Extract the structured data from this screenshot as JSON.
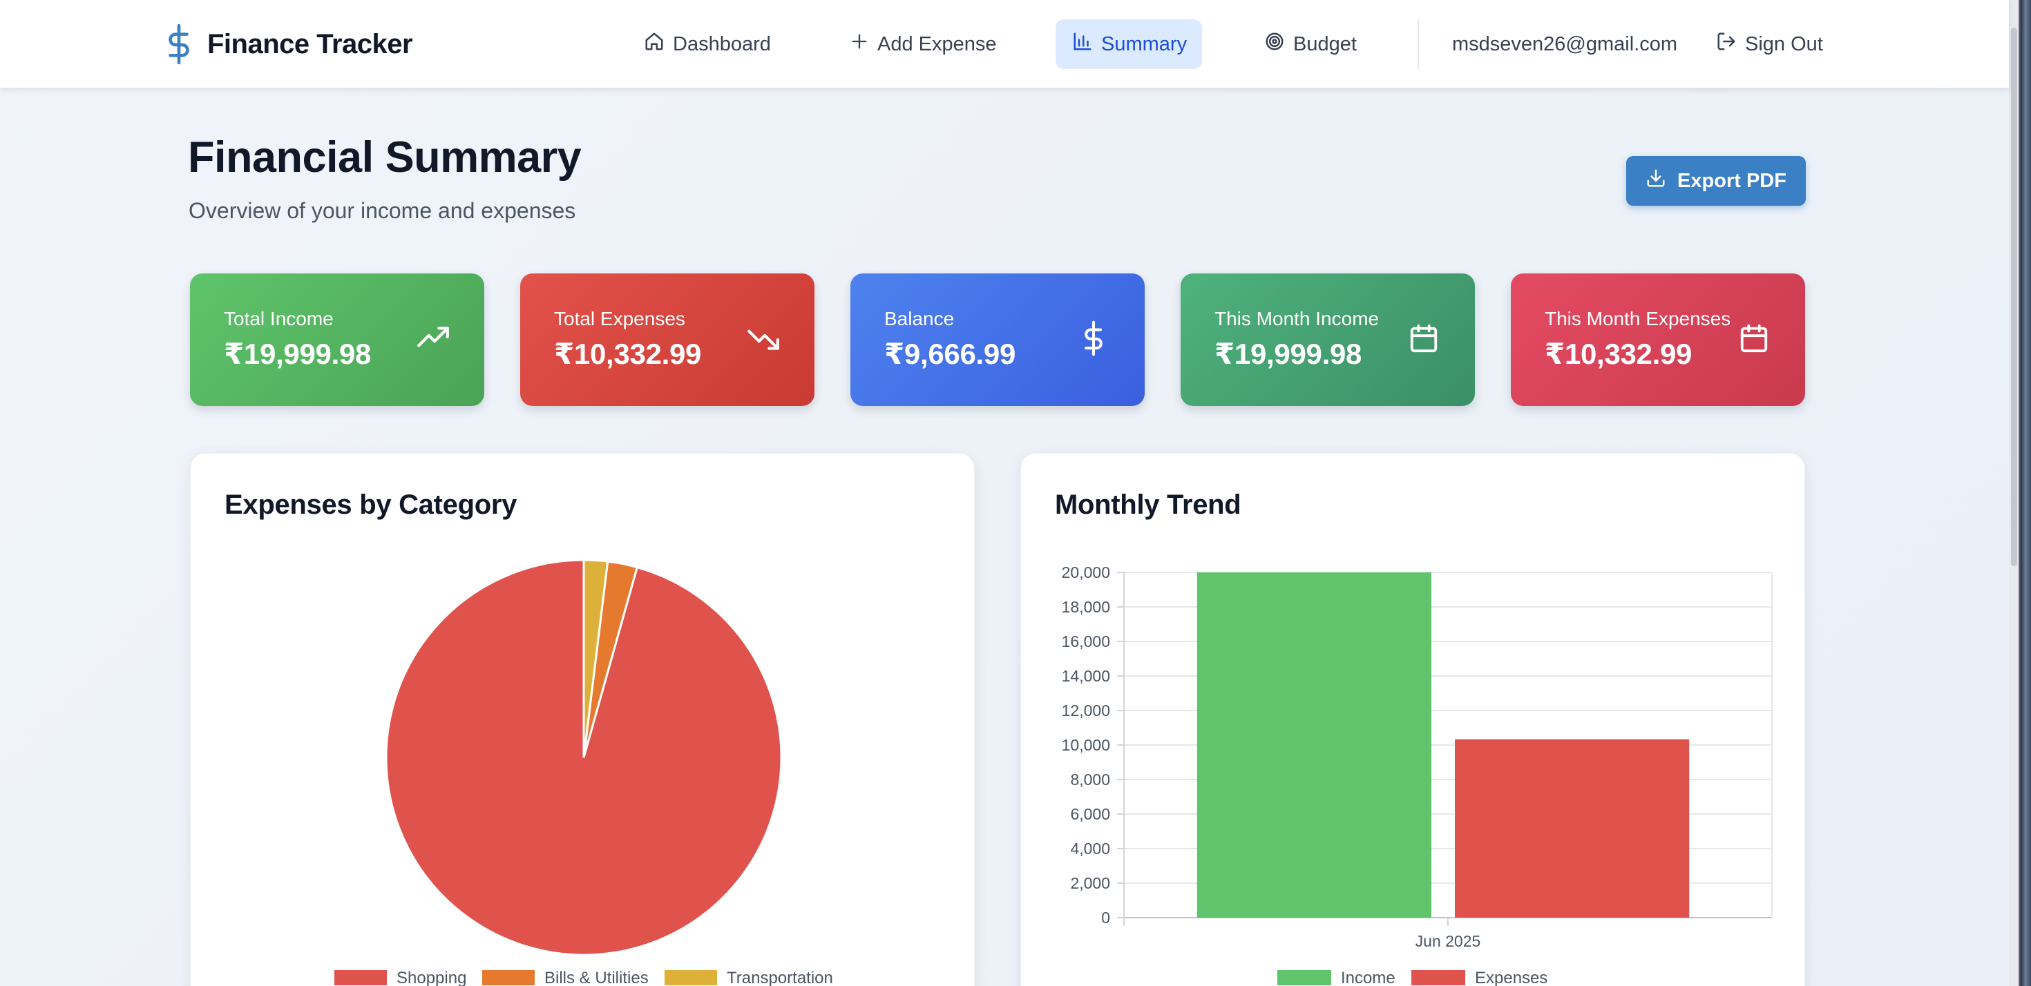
{
  "nav": {
    "brand": "Finance Tracker",
    "items": [
      {
        "label": "Dashboard",
        "icon": "home-icon"
      },
      {
        "label": "Add Expense",
        "icon": "plus-icon"
      },
      {
        "label": "Summary",
        "icon": "bar-chart-icon",
        "active": true
      },
      {
        "label": "Budget",
        "icon": "target-icon"
      }
    ],
    "email": "msdseven26@gmail.com",
    "sign_out": "Sign Out"
  },
  "header": {
    "title": "Financial Summary",
    "subtitle": "Overview of your income and expenses",
    "export_label": "Export PDF"
  },
  "stats": [
    {
      "label": "Total Income",
      "value": "₹19,999.98",
      "icon": "trending-up-icon",
      "color": "#56b461"
    },
    {
      "label": "Total Expenses",
      "value": "₹10,332.99",
      "icon": "trending-down-icon",
      "color": "#d8453e"
    },
    {
      "label": "Balance",
      "value": "₹9,666.99",
      "icon": "dollar-icon",
      "color": "#4470e8"
    },
    {
      "label": "This Month Income",
      "value": "₹19,999.98",
      "icon": "calendar-icon",
      "color": "#46a271"
    },
    {
      "label": "This Month Expenses",
      "value": "₹10,332.99",
      "icon": "calendar-icon",
      "color": "#d84258"
    }
  ],
  "panels": {
    "pie_title": "Expenses by Category",
    "bar_title": "Monthly Trend"
  },
  "colors": {
    "accent": "#3b7fc4",
    "shopping": "#e0534d",
    "bills": "#e57a2f",
    "transportation": "#ddb03a",
    "income": "#5fc46b",
    "expenses": "#e0534d"
  },
  "chart_data": [
    {
      "type": "pie",
      "title": "Expenses by Category",
      "labels": [
        "Shopping",
        "Bills & Utilities",
        "Transportation"
      ],
      "values": [
        9882.99,
        250,
        200
      ],
      "colors": [
        "#e0534d",
        "#e57a2f",
        "#ddb03a"
      ],
      "legend": "bottom"
    },
    {
      "type": "bar",
      "title": "Monthly Trend",
      "categories": [
        "Jun 2025"
      ],
      "series": [
        {
          "name": "Income",
          "values": [
            19999.98
          ],
          "color": "#5fc46b"
        },
        {
          "name": "Expenses",
          "values": [
            10332.99
          ],
          "color": "#e0534d"
        }
      ],
      "ylim": [
        0,
        20000
      ],
      "yticks": [
        "0",
        "2,000",
        "4,000",
        "6,000",
        "8,000",
        "10,000",
        "12,000",
        "14,000",
        "16,000",
        "18,000",
        "20,000"
      ],
      "grid": true,
      "legend": "bottom"
    }
  ]
}
